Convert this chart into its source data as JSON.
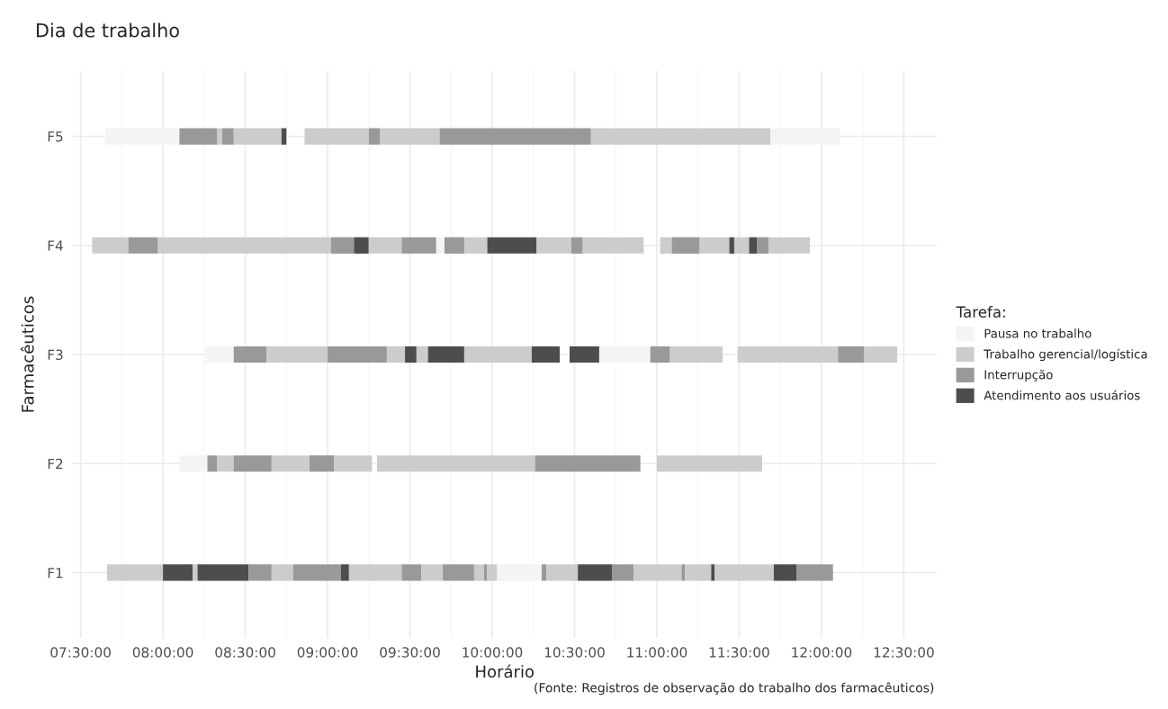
{
  "chart_data": {
    "type": "bar",
    "orientation": "horizontal",
    "title": "Dia de trabalho",
    "xlabel": "Horário",
    "ylabel": "Farmacêuticos",
    "legend_title": "Tarefa:",
    "legend": "right",
    "grid": true,
    "annotations": [
      "(Fonte: Registros de observação do trabalho dos farmacêuticos)"
    ],
    "categories": [
      "F5",
      "F4",
      "F3",
      "F2",
      "F1"
    ],
    "xlim": [
      7.45,
      12.7
    ],
    "xticks": [
      {
        "value": 7.5,
        "label": "07:30:00"
      },
      {
        "value": 8,
        "label": "08:00:00"
      },
      {
        "value": 8.5,
        "label": "08:30:00"
      },
      {
        "value": 9,
        "label": "09:00:00"
      },
      {
        "value": 9.5,
        "label": "09:30:00"
      },
      {
        "value": 10,
        "label": "10:00:00"
      },
      {
        "value": 10.5,
        "label": "10:30:00"
      },
      {
        "value": 11,
        "label": "11:00:00"
      },
      {
        "value": 11.5,
        "label": "11:30:00"
      },
      {
        "value": 12,
        "label": "12:00:00"
      },
      {
        "value": 12.5,
        "label": "12:30:00"
      }
    ],
    "series": [
      {
        "name": "Pausa no trabalho",
        "color": "#f4f4f4",
        "values": [
          null,
          null,
          null,
          null,
          null
        ]
      },
      {
        "name": "Trabalho gerencial/logística",
        "color": "#cccccc",
        "values": [
          null,
          null,
          null,
          null,
          null
        ]
      },
      {
        "name": "Interrupção",
        "color": "#999999",
        "values": [
          null,
          null,
          null,
          null,
          null
        ]
      },
      {
        "name": "Atendimento aos usuários",
        "color": "#4d4d4d",
        "values": [
          null,
          null,
          null,
          null,
          null
        ]
      },
      {
        "base": [
          7.65,
          7.57,
          8.26,
          8.1,
          7.66
        ],
        "values": [
          0.45,
          0.22,
          0.17,
          0.17,
          0.34
        ],
        "colors": [
          "#f4f4f4",
          "#cccccc",
          "#f4f4f4",
          "#f4f4f4",
          "#cccccc"
        ]
      },
      {
        "base": [
          8.1,
          7.79,
          8.43,
          8.27,
          8.0
        ],
        "values": [
          0.23,
          0.18,
          0.2,
          0.06,
          0.18
        ],
        "colors": [
          "#999999",
          "#999999",
          "#999999",
          "#999999",
          "#4d4d4d"
        ]
      },
      {
        "base": [
          8.33,
          7.97,
          8.63,
          8.33,
          8.18
        ],
        "values": [
          0.03,
          1.05,
          0.37,
          0.1,
          0.03
        ],
        "colors": [
          "#cccccc",
          "#cccccc",
          "#cccccc",
          "#cccccc",
          "#cccccc"
        ]
      },
      {
        "base": [
          8.36,
          9.02,
          9.0,
          8.43,
          8.21
        ],
        "values": [
          0.07,
          0.14,
          0.36,
          0.23,
          0.31
        ],
        "colors": [
          "#999999",
          "#999999",
          "#999999",
          "#999999",
          "#4d4d4d"
        ]
      },
      {
        "base": [
          8.43,
          9.16,
          9.36,
          8.66,
          8.52
        ],
        "values": [
          0.29,
          0.09,
          0.11,
          0.23,
          0.14
        ],
        "colors": [
          "#cccccc",
          "#4d4d4d",
          "#cccccc",
          "#cccccc",
          "#999999"
        ]
      },
      {
        "base": [
          8.72,
          9.25,
          9.47,
          8.89,
          8.66
        ],
        "values": [
          0.03,
          0.2,
          0.07,
          0.15,
          0.13
        ],
        "colors": [
          "#4d4d4d",
          "#cccccc",
          "#4d4d4d",
          "#999999",
          "#cccccc"
        ]
      },
      {
        "base": [
          8.86,
          9.45,
          9.54,
          9.04,
          8.79
        ],
        "values": [
          0.39,
          0.21,
          0.07,
          0.23,
          0.29
        ],
        "colors": [
          "#cccccc",
          "#999999",
          "#cccccc",
          "#cccccc",
          "#999999"
        ]
      },
      {
        "base": [
          9.25,
          9.66,
          9.61,
          9.3,
          9.08
        ],
        "values": [
          0.07,
          0.05,
          0.22,
          0.96,
          0.05
        ],
        "colors": [
          "#999999",
          "#f4f4f4",
          "#4d4d4d",
          "#cccccc",
          "#4d4d4d"
        ]
      },
      {
        "base": [
          9.32,
          9.71,
          9.83,
          10.26,
          9.13
        ],
        "values": [
          0.36,
          0.12,
          0.41,
          0.64,
          0.32
        ],
        "colors": [
          "#cccccc",
          "#999999",
          "#cccccc",
          "#999999",
          "#cccccc"
        ]
      },
      {
        "base": [
          9.68,
          9.83,
          10.24,
          11.0,
          9.45
        ],
        "values": [
          0.92,
          0.14,
          0.17,
          0.64,
          0.12
        ],
        "colors": [
          "#999999",
          "#cccccc",
          "#4d4d4d",
          "#cccccc",
          "#999999"
        ]
      },
      {
        "base": [
          10.6,
          9.97,
          10.47,
          null,
          9.57
        ],
        "values": [
          1.09,
          0.3,
          0.18,
          null,
          0.13
        ],
        "colors": [
          "#cccccc",
          "#4d4d4d",
          "#4d4d4d",
          null,
          "#cccccc"
        ]
      },
      {
        "base": [
          11.69,
          10.27,
          10.65,
          null,
          9.7
        ],
        "values": [
          0.42,
          0.21,
          0.31,
          null,
          0.19
        ],
        "colors": [
          "#f4f4f4",
          "#cccccc",
          "#f4f4f4",
          null,
          "#999999"
        ]
      },
      {
        "base": [
          null,
          10.48,
          10.96,
          null,
          9.89
        ],
        "values": [
          null,
          0.07,
          0.12,
          null,
          0.06
        ],
        "colors": [
          null,
          "#999999",
          "#999999",
          null,
          "#cccccc"
        ]
      },
      {
        "base": [
          null,
          10.55,
          11.08,
          null,
          9.95
        ],
        "values": [
          null,
          0.37,
          0.32,
          null,
          0.02
        ],
        "colors": [
          null,
          "#cccccc",
          "#cccccc",
          null,
          "#999999"
        ]
      },
      {
        "base": [
          null,
          11.02,
          11.49,
          null,
          9.97
        ],
        "values": [
          null,
          0.07,
          0.61,
          null,
          0.06
        ],
        "colors": [
          null,
          "#cccccc",
          "#cccccc",
          null,
          "#cccccc"
        ]
      },
      {
        "base": [
          null,
          11.09,
          12.1,
          null,
          10.03
        ],
        "values": [
          null,
          0.17,
          0.16,
          null,
          0.27
        ],
        "colors": [
          null,
          "#999999",
          "#999999",
          null,
          "#f4f4f4"
        ]
      },
      {
        "base": [
          null,
          11.26,
          12.26,
          null,
          10.3
        ],
        "values": [
          null,
          0.18,
          0.2,
          null,
          0.03
        ],
        "colors": [
          null,
          "#cccccc",
          "#cccccc",
          null,
          "#999999"
        ]
      },
      {
        "base": [
          null,
          11.44,
          null,
          null,
          10.33
        ],
        "values": [
          null,
          0.03,
          null,
          null,
          0.19
        ],
        "colors": [
          null,
          "#4d4d4d",
          null,
          null,
          "#cccccc"
        ]
      },
      {
        "base": [
          null,
          11.47,
          null,
          null,
          10.52
        ],
        "values": [
          null,
          0.09,
          null,
          null,
          0.21
        ],
        "colors": [
          null,
          "#cccccc",
          null,
          null,
          "#4d4d4d"
        ]
      },
      {
        "base": [
          null,
          11.56,
          null,
          null,
          10.73
        ],
        "values": [
          null,
          0.05,
          null,
          null,
          0.13
        ],
        "colors": [
          null,
          "#4d4d4d",
          null,
          null,
          "#999999"
        ]
      },
      {
        "base": [
          null,
          11.61,
          null,
          null,
          10.86
        ],
        "values": [
          null,
          0.07,
          null,
          null,
          0.29
        ],
        "colors": [
          null,
          "#999999",
          null,
          null,
          "#cccccc"
        ]
      },
      {
        "base": [
          null,
          11.68,
          null,
          null,
          11.15
        ],
        "values": [
          null,
          0.25,
          null,
          null,
          0.02
        ],
        "colors": [
          null,
          "#cccccc",
          null,
          null,
          "#999999"
        ]
      },
      {
        "base": [
          null,
          null,
          null,
          null,
          11.17
        ],
        "values": [
          null,
          null,
          null,
          null,
          0.16
        ],
        "colors": [
          null,
          null,
          null,
          null,
          "#cccccc"
        ]
      },
      {
        "base": [
          null,
          null,
          null,
          null,
          11.33
        ],
        "values": [
          null,
          null,
          null,
          null,
          0.02
        ],
        "colors": [
          null,
          null,
          null,
          null,
          "#4d4d4d"
        ]
      },
      {
        "base": [
          null,
          null,
          null,
          null,
          11.35
        ],
        "values": [
          null,
          null,
          null,
          null,
          0.36
        ],
        "colors": [
          null,
          null,
          null,
          null,
          "#cccccc"
        ]
      },
      {
        "base": [
          null,
          null,
          null,
          null,
          11.71
        ],
        "values": [
          null,
          null,
          null,
          null,
          0.14
        ],
        "colors": [
          null,
          null,
          null,
          null,
          "#4d4d4d"
        ]
      },
      {
        "base": [
          null,
          null,
          null,
          null,
          11.85
        ],
        "values": [
          null,
          null,
          null,
          null,
          0.22
        ],
        "colors": [
          null,
          null,
          null,
          null,
          "#999999"
        ]
      }
    ]
  }
}
